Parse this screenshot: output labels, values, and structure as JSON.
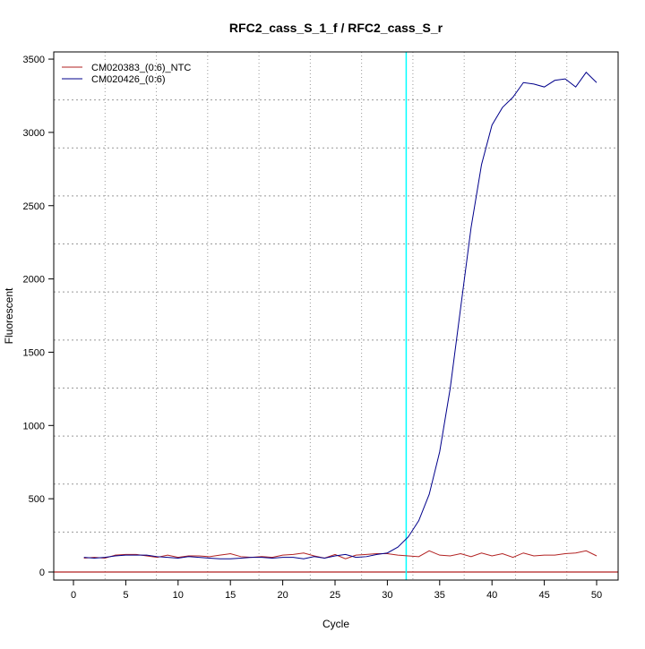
{
  "chart_data": {
    "type": "line",
    "title": "RFC2_cass_S_1_f / RFC2_cass_S_r",
    "xlabel": "Cycle",
    "ylabel": "Fluorescent",
    "xlim": [
      -2,
      52
    ],
    "ylim": [
      -50,
      3600
    ],
    "xticks": [
      0,
      5,
      10,
      15,
      20,
      25,
      30,
      35,
      40,
      45,
      50
    ],
    "yticks": [
      0,
      500,
      1000,
      1500,
      2000,
      2500,
      3000,
      3500
    ],
    "grid": true,
    "legend_position": "top-left",
    "threshold_cycle": 31.8,
    "baseline": 0,
    "colors": {
      "threshold": "#00ffff",
      "baseline": "#b22222"
    },
    "x": [
      1,
      2,
      3,
      4,
      5,
      6,
      7,
      8,
      9,
      10,
      11,
      12,
      13,
      14,
      15,
      16,
      17,
      18,
      19,
      20,
      21,
      22,
      23,
      24,
      25,
      26,
      27,
      28,
      29,
      30,
      31,
      32,
      33,
      34,
      35,
      36,
      37,
      38,
      39,
      40,
      41,
      42,
      43,
      44,
      45,
      46,
      47,
      48,
      49,
      50
    ],
    "series": [
      {
        "name": "CM020383_(0:6)_NTC",
        "color": "#b22222",
        "values": [
          95,
          100,
          95,
          115,
          120,
          120,
          110,
          100,
          115,
          100,
          110,
          110,
          105,
          115,
          125,
          105,
          100,
          105,
          100,
          115,
          120,
          130,
          110,
          95,
          120,
          90,
          115,
          120,
          125,
          125,
          115,
          110,
          105,
          145,
          115,
          110,
          125,
          105,
          130,
          110,
          125,
          100,
          130,
          110,
          115,
          115,
          125,
          130,
          145,
          110
        ]
      },
      {
        "name": "CM020426_(0:6)",
        "color": "#00008b",
        "values": [
          100,
          95,
          100,
          110,
          115,
          115,
          115,
          105,
          100,
          95,
          105,
          100,
          95,
          90,
          90,
          95,
          100,
          100,
          95,
          100,
          100,
          90,
          105,
          95,
          110,
          120,
          100,
          105,
          120,
          130,
          170,
          240,
          350,
          530,
          820,
          1250,
          1800,
          2350,
          2780,
          3050,
          3170,
          3240,
          3340,
          3330,
          3310,
          3355,
          3365,
          3310,
          3410,
          3340
        ]
      }
    ]
  }
}
